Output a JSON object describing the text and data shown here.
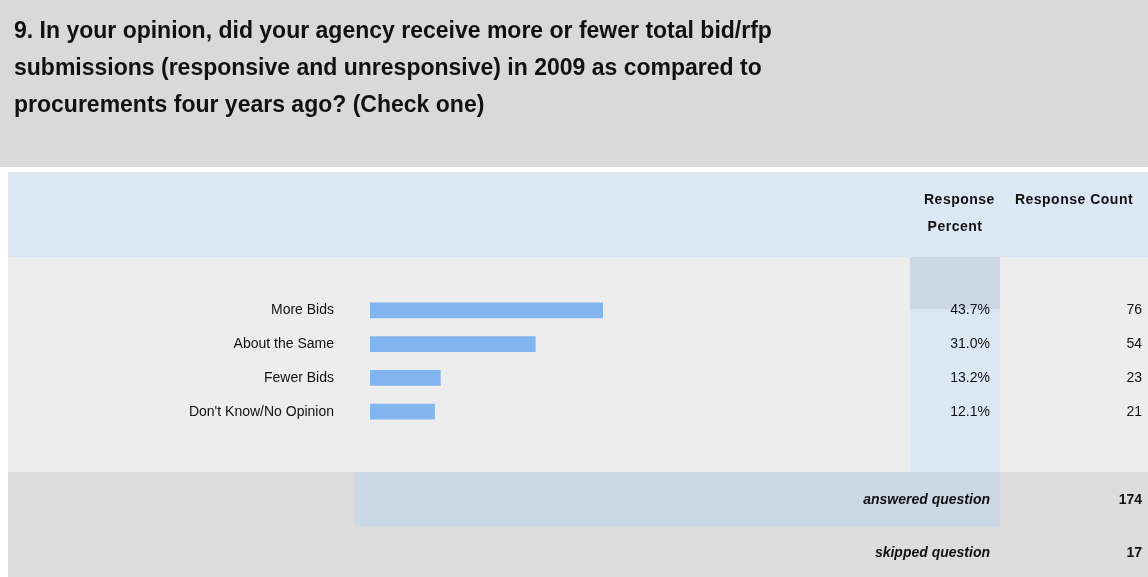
{
  "chart_data": {
    "type": "bar",
    "orientation": "horizontal",
    "title": "9. In your opinion, did your agency receive more or fewer total bid/rfp submissions (responsive and unresponsive) in 2009 as compared to procurements four years ago? (Check one)",
    "categories": [
      "More Bids",
      "About the Same",
      "Fewer Bids",
      "Don't Know/No Opinion"
    ],
    "values": [
      43.7,
      31.0,
      13.2,
      12.1
    ],
    "value_labels": [
      "43.7%",
      "31.0%",
      "13.2%",
      "12.1%"
    ],
    "color": "#82b4ee",
    "tick_labels": "y",
    "annotations": [
      "Response Percent",
      "Response Count",
      "76",
      "54",
      "23",
      "21",
      "answered question",
      "174",
      "skipped question",
      "17"
    ]
  }
}
